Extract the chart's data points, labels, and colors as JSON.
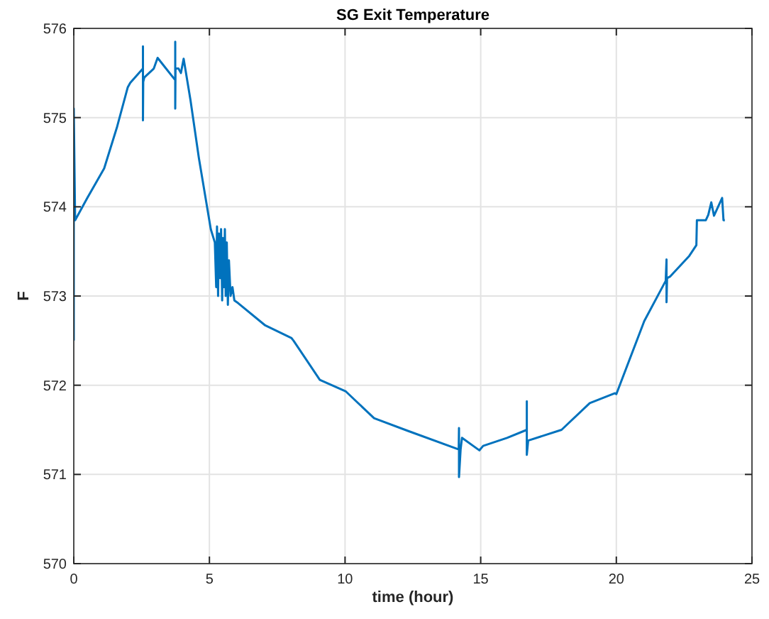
{
  "chart_data": {
    "type": "line",
    "title": "SG Exit Temperature",
    "xlabel": "time (hour)",
    "ylabel": "F",
    "xlim": [
      0,
      25
    ],
    "xticks": [
      0,
      5,
      10,
      15,
      20,
      25
    ],
    "ylim": [
      570,
      576
    ],
    "yticks": [
      570,
      571,
      572,
      573,
      574,
      575,
      576
    ],
    "grid": true,
    "marker": "none",
    "line_style": "solid",
    "series": [
      {
        "color": "#0072bd",
        "x": [
          0,
          0,
          0.05,
          0.5,
          1.12,
          1.6,
          1.99,
          2.08,
          2.55,
          2.55,
          2.55,
          2.56,
          2.6,
          2.95,
          3.09,
          3.4,
          3.74,
          3.74,
          3.74,
          3.75,
          3.86,
          3.95,
          4.05,
          4.3,
          4.61,
          5.05,
          5.2,
          5.25,
          5.28,
          5.32,
          5.35,
          5.4,
          5.43,
          5.47,
          5.5,
          5.54,
          5.57,
          5.6,
          5.64,
          5.68,
          5.72,
          5.78,
          5.85,
          5.92,
          6.06,
          7.06,
          8.02,
          8.1,
          9.07,
          10.03,
          11.07,
          12.3,
          14.19,
          14.2,
          14.2,
          14.26,
          14.31,
          14.95,
          15.09,
          15.97,
          16.7,
          16.7,
          16.7,
          16.75,
          17.98,
          19.02,
          19.95,
          20.0,
          21.03,
          21.82,
          21.85,
          21.85,
          21.87,
          21.99,
          22.69,
          22.95,
          22.97,
          23.3,
          23.39,
          23.5,
          23.6,
          23.75,
          23.9,
          23.95,
          24.0
        ],
        "values": [
          572.5,
          575.1,
          573.85,
          574.1,
          574.43,
          574.9,
          575.34,
          575.39,
          575.55,
          575.8,
          574.97,
          575.4,
          575.45,
          575.55,
          575.67,
          575.55,
          575.42,
          575.85,
          575.1,
          575.55,
          575.55,
          575.5,
          575.66,
          575.2,
          574.55,
          573.75,
          573.6,
          573.1,
          573.78,
          573.0,
          573.7,
          573.2,
          573.75,
          572.95,
          573.65,
          573.1,
          573.75,
          573.0,
          573.6,
          572.9,
          573.4,
          573.0,
          573.1,
          572.95,
          572.92,
          572.67,
          572.53,
          572.5,
          572.06,
          571.93,
          571.63,
          571.49,
          571.28,
          571.52,
          570.97,
          571.28,
          571.41,
          571.27,
          571.32,
          571.41,
          571.5,
          571.82,
          571.22,
          571.38,
          571.5,
          571.8,
          571.91,
          571.9,
          572.72,
          573.17,
          573.41,
          572.93,
          573.2,
          573.22,
          573.45,
          573.57,
          573.85,
          573.85,
          573.91,
          574.05,
          573.9,
          574.0,
          574.1,
          573.85,
          573.85
        ]
      }
    ]
  }
}
